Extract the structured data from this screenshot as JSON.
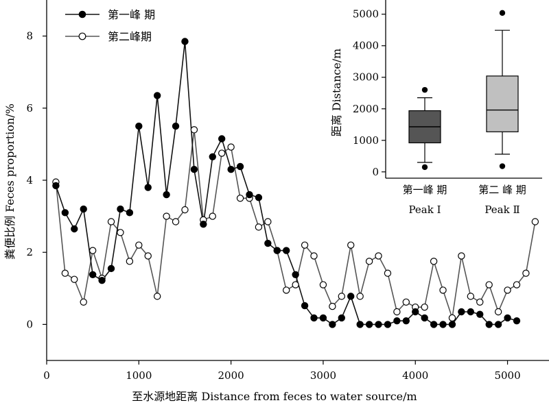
{
  "chart_data": [
    {
      "type": "line",
      "xlabel": "至水源地距离 Distance from feces to water source/m",
      "ylabel": "粪便比例 Feces proportion/%",
      "xlim": [
        0,
        5450
      ],
      "ylim": [
        -1,
        9
      ],
      "xticks": [
        0,
        1000,
        2000,
        3000,
        4000,
        5000
      ],
      "yticks": [
        0,
        2,
        4,
        6,
        8
      ],
      "legend_position": "top-left",
      "series": [
        {
          "name": "第一峰 期",
          "marker": "filled-circle",
          "color": "#000000",
          "line_color": "#111111",
          "x": [
            100,
            200,
            300,
            400,
            500,
            600,
            700,
            800,
            900,
            1000,
            1100,
            1200,
            1300,
            1400,
            1500,
            1600,
            1700,
            1800,
            1900,
            2000,
            2100,
            2200,
            2300,
            2400,
            2500,
            2600,
            2700,
            2800,
            2900,
            3000,
            3100,
            3200,
            3300,
            3400,
            3500,
            3600,
            3700,
            3800,
            3900,
            4000,
            4100,
            4200,
            4300,
            4400,
            4500,
            4600,
            4700,
            4800,
            4900,
            5000,
            5100
          ],
          "y": [
            3.85,
            3.1,
            2.65,
            3.2,
            1.38,
            1.22,
            1.55,
            3.2,
            3.1,
            5.5,
            3.8,
            6.35,
            3.6,
            5.5,
            7.85,
            4.3,
            2.78,
            4.65,
            5.15,
            4.3,
            4.38,
            3.6,
            3.52,
            2.25,
            2.05,
            2.05,
            1.38,
            0.52,
            0.18,
            0.18,
            0.0,
            0.18,
            0.78,
            0.0,
            0.0,
            0.0,
            0.0,
            0.1,
            0.1,
            0.35,
            0.18,
            0.0,
            0.0,
            0.0,
            0.35,
            0.35,
            0.28,
            0.0,
            0.0,
            0.18,
            0.1
          ]
        },
        {
          "name": "第二峰期",
          "marker": "open-circle",
          "color": "#000000",
          "line_color": "#555555",
          "x": [
            100,
            200,
            300,
            400,
            500,
            600,
            700,
            800,
            900,
            1000,
            1100,
            1200,
            1300,
            1400,
            1500,
            1600,
            1700,
            1800,
            1900,
            2000,
            2100,
            2200,
            2300,
            2400,
            2500,
            2600,
            2700,
            2800,
            2900,
            3000,
            3100,
            3200,
            3300,
            3400,
            3500,
            3600,
            3700,
            3800,
            3900,
            4000,
            4100,
            4200,
            4300,
            4400,
            4500,
            4600,
            4700,
            4800,
            4900,
            5000,
            5100,
            5200,
            5300
          ],
          "y": [
            3.95,
            1.42,
            1.25,
            0.62,
            2.05,
            1.28,
            2.85,
            2.55,
            1.75,
            2.2,
            1.9,
            0.78,
            3.0,
            2.85,
            3.18,
            5.4,
            2.9,
            3.0,
            4.75,
            4.92,
            3.5,
            3.5,
            2.7,
            2.85,
            2.05,
            0.95,
            1.1,
            2.2,
            1.9,
            1.1,
            0.5,
            0.78,
            2.2,
            0.78,
            1.75,
            1.9,
            1.42,
            0.35,
            0.62,
            0.48,
            0.48,
            1.75,
            0.95,
            0.18,
            1.9,
            0.78,
            0.62,
            1.1,
            0.35,
            0.95,
            1.1,
            1.42,
            2.85
          ]
        }
      ]
    },
    {
      "type": "box",
      "ylabel": "距离 Distance/m",
      "ylim": [
        -200,
        5450
      ],
      "yticks": [
        0,
        1000,
        2000,
        3000,
        4000,
        5000
      ],
      "categories": [
        {
          "label": "第一峰 期",
          "sublabel": "Peak Ⅰ",
          "color": "#555555"
        },
        {
          "label": "第二 峰 期",
          "sublabel": "Peak Ⅱ",
          "color": "#c0c0c0"
        }
      ],
      "boxes": [
        {
          "whisker_low": 300,
          "q1": 920,
          "median": 1430,
          "q3": 1940,
          "whisker_high": 2350,
          "outliers": [
            2600,
            150
          ]
        },
        {
          "whisker_low": 560,
          "q1": 1270,
          "median": 1960,
          "q3": 3040,
          "whisker_high": 4490,
          "outliers": [
            5040,
            180
          ]
        }
      ]
    }
  ]
}
